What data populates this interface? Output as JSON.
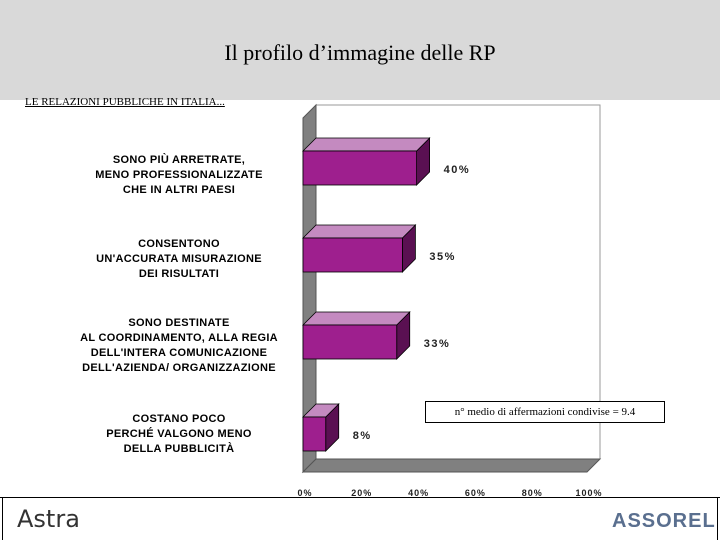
{
  "slide": {
    "title": "Il profilo d’immagine delle RP",
    "subtitle": "LE RELAZIONI PUBBLICHE IN ITALIA...",
    "note": "n° medio di affermazioni condivise = 9.4",
    "logo_left": "Astra",
    "logo_right": "ASSOREL"
  },
  "colors": {
    "bar_face": "#9e1f8e",
    "bar_top": "#c48ac0",
    "bar_side": "#5a1052",
    "floor": "#808080",
    "back_wall": "#ffffff",
    "title_band": "#d9d9d9"
  },
  "chart_data": {
    "type": "bar",
    "orientation": "horizontal",
    "style": "3d",
    "categories": [
      [
        "SONO PIÙ ARRETRATE,",
        "MENO PROFESSIONALIZZATE",
        "CHE IN ALTRI PAESI"
      ],
      [
        "CONSENTONO",
        "UN'ACCURATA MISURAZIONE",
        "DEI RISULTATI"
      ],
      [
        "SONO DESTINATE",
        "AL COORDINAMENTO, ALLA REGIA",
        "DELL'INTERA COMUNICAZIONE",
        "DELL'AZIENDA/ ORGANIZZAZIONE"
      ],
      [
        "COSTANO POCO",
        "PERCHÉ VALGONO MENO",
        "DELLA PUBBLICITÀ"
      ]
    ],
    "values": [
      40,
      35,
      33,
      8
    ],
    "value_labels": [
      "40%",
      "35%",
      "33%",
      "8%"
    ],
    "xlim": [
      0,
      100
    ],
    "xticks": [
      "0%",
      "20%",
      "40%",
      "60%",
      "80%",
      "100%"
    ],
    "grid": false
  }
}
